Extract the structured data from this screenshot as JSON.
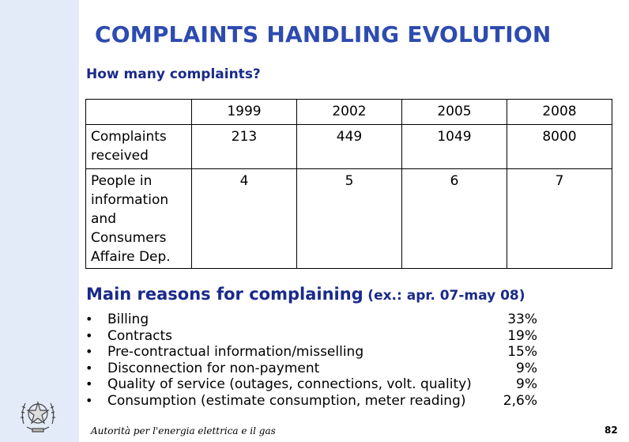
{
  "title": "COMPLAINTS HANDLING EVOLUTION",
  "subtitle": "How many complaints?",
  "table": {
    "years": [
      "1999",
      "2002",
      "2005",
      "2008"
    ],
    "rows": [
      {
        "label": "Complaints received",
        "values": [
          "213",
          "449",
          "1049",
          "8000"
        ]
      },
      {
        "label": "People in information and Consumers Affaire Dep.",
        "values": [
          "4",
          "5",
          "6",
          "7"
        ]
      }
    ]
  },
  "reasons_heading": "Main reasons for complaining",
  "reasons_period": "(ex.: apr. 07-may 08)",
  "reasons": [
    {
      "label": "Billing",
      "pct": "33%"
    },
    {
      "label": "Contracts",
      "pct": "19%"
    },
    {
      "label": "Pre-contractual information/misselling",
      "pct": "15%"
    },
    {
      "label": "Disconnection for non-payment",
      "pct": "9%"
    },
    {
      "label": "Quality of service (outages, connections, volt. quality)",
      "pct": "9%"
    },
    {
      "label": "Consumption (estimate consumption, meter reading)",
      "pct": "2,6%"
    }
  ],
  "bullet_glyph": "•",
  "footer": "Autorità per l'energia elettrica e il gas",
  "page_number": "82",
  "colors": {
    "title": "#2d4bb0",
    "heading": "#1a2a8a",
    "sidebar": "#e4ebf8"
  },
  "logo_icon": "italian-republic-emblem-icon"
}
